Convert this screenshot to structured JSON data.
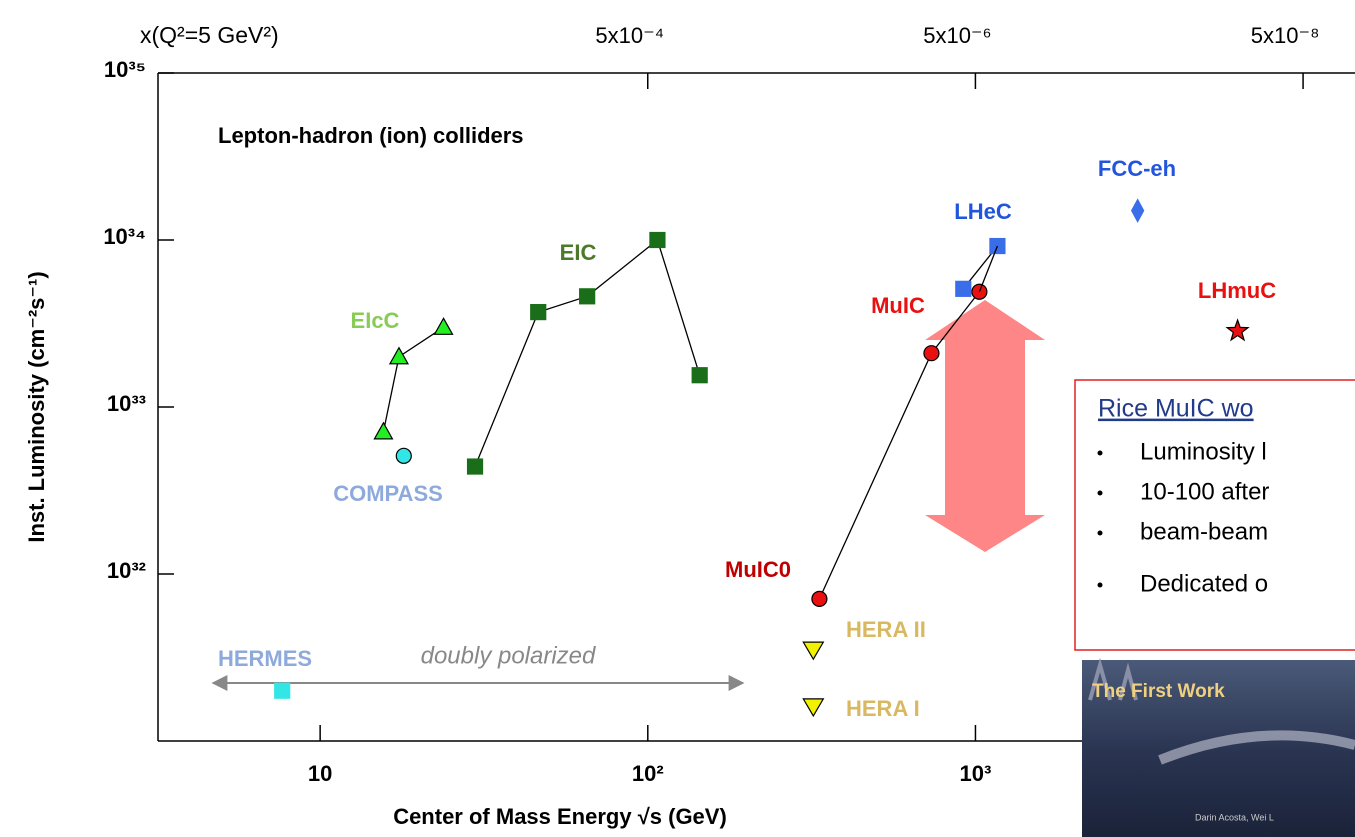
{
  "chart_data": {
    "type": "scatter",
    "title": "Lepton-hadron (ion) colliders",
    "x_label": "Center of Mass Energy  √s (GeV)",
    "y_label": "Inst. Luminosity (cm⁻²s⁻¹)",
    "x2_label": "x(Q²=5 GeV²)",
    "log_x": true,
    "log_y": true,
    "xlim": [
      3.2,
      14400
    ],
    "ylim": [
      1e+31,
      1e+35
    ],
    "x2lim": [
      0.488,
      2.41e-08
    ],
    "xticks": [
      10,
      {
        "value": 100,
        "label": "10²"
      },
      {
        "value": 1000,
        "label": "10³"
      }
    ],
    "yticks": [
      {
        "value": 1e+32,
        "label": "10³²"
      },
      {
        "value": 1e+33,
        "label": "10³³"
      },
      {
        "value": 1e+34,
        "label": "10³⁴"
      },
      {
        "value": 1e+35,
        "label": "10³⁵"
      }
    ],
    "x2ticks": [
      {
        "value": 0.0005,
        "label": "5x10⁻⁴"
      },
      {
        "value": 5e-06,
        "label": "5x10⁻⁶"
      },
      {
        "value": 5e-08,
        "label": "5x10⁻⁸"
      }
    ],
    "series": [
      {
        "name": "EIcC",
        "color": "#22ee22",
        "label_color": "#88cc55",
        "marker": "triangle-up",
        "line": true,
        "x": [
          15.6,
          17.4,
          23.8
        ],
        "values": [
          7.1e+32,
          2e+33,
          3e+33
        ]
      },
      {
        "name": "COMPASS",
        "color": "#33e6e6",
        "label_color": "#8eaadc",
        "marker": "circle",
        "line": false,
        "x": [
          18.0
        ],
        "values": [
          5.1e+32
        ]
      },
      {
        "name": "EIC",
        "color": "#1a6e1a",
        "label_color": "#4a7a2a",
        "marker": "square",
        "line": true,
        "x": [
          29.7,
          46.3,
          65.3,
          107,
          144
        ],
        "values": [
          4.4e+32,
          3.7e+33,
          4.6e+33,
          1e+34,
          1.55e+33
        ]
      },
      {
        "name": "MuIC",
        "color": "#e81010",
        "label_color": "#e81010",
        "marker": "circle",
        "line": true,
        "x": [
          334,
          734,
          1028
        ],
        "values": [
          7.1e+31,
          2.1e+33,
          4.9e+33
        ]
      },
      {
        "name": "LHeC",
        "color": "#3a6ee8",
        "label_color": "#2255dd",
        "marker": "square",
        "line": true,
        "x": [
          918,
          1167
        ],
        "values": [
          5.1e+33,
          9.2e+33
        ]
      },
      {
        "name": "FCC-eh",
        "color": "#3a6ee8",
        "label_color": "#2255dd",
        "marker": "diamond",
        "line": false,
        "x": [
          3126
        ],
        "values": [
          1.5e+34
        ]
      },
      {
        "name": "LHmuC",
        "color": "#e81010",
        "label_color": "#e81010",
        "marker": "star",
        "line": false,
        "x": [
          6310
        ],
        "values": [
          2.85e+33
        ]
      },
      {
        "name": "HERA II",
        "color": "#f2f200",
        "label_color": "#d8b860",
        "marker": "triangle-down",
        "line": false,
        "x": [
          320
        ],
        "values": [
          3.5e+31
        ]
      },
      {
        "name": "HERA I",
        "color": "#f2f200",
        "label_color": "#d8b860",
        "marker": "triangle-down",
        "line": false,
        "x": [
          320
        ],
        "values": [
          1.6e+31
        ]
      },
      {
        "name": "HERMES",
        "color": "#33e6e6",
        "label_color": "#8eaadc",
        "marker": "square",
        "line": false,
        "x": [
          7.66
        ],
        "values": [
          2e+31
        ]
      }
    ],
    "annotations": [
      "MuIC0",
      "doubly polarized"
    ]
  },
  "text_box": {
    "title": "Rice MuIC wo",
    "bullets": [
      "Luminosity l",
      "10-100 after",
      "beam-beam",
      "Dedicated o"
    ]
  },
  "image": {
    "title": "The First Work",
    "caption": "Darin Acosta, Wei L"
  }
}
